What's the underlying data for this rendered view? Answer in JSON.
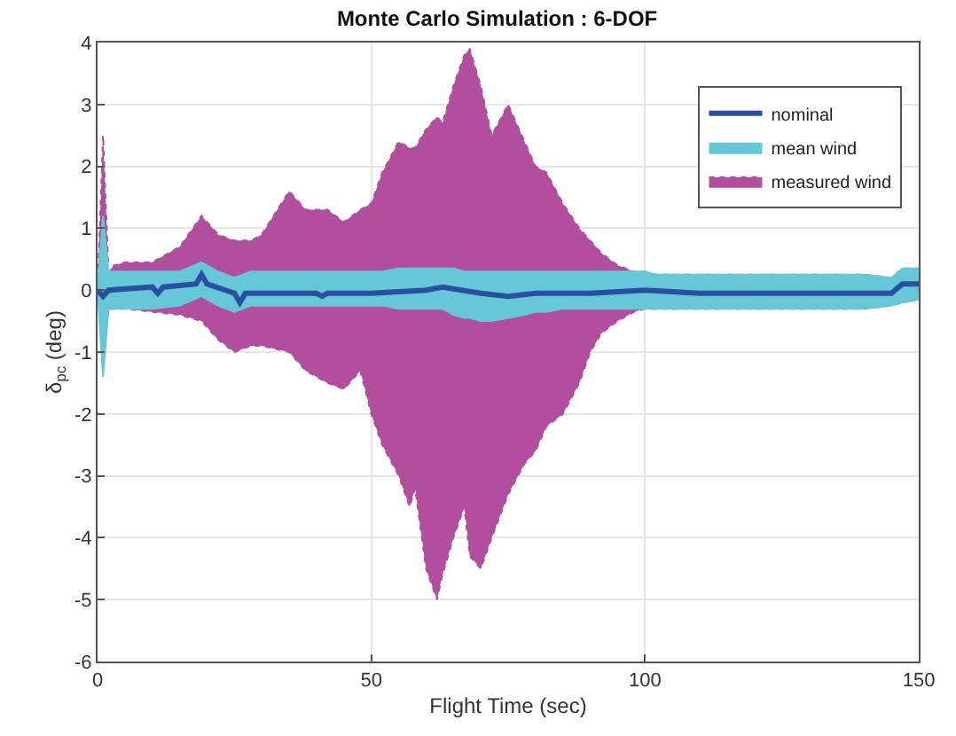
{
  "chart_data": {
    "type": "line",
    "title": "Monte Carlo Simulation : 6-DOF",
    "xlabel": "Flight Time (sec)",
    "ylabel": "δ$_{pc}$ (deg)",
    "xlim": [
      0,
      150
    ],
    "xticks": [
      0,
      50,
      100,
      150
    ],
    "ylim": [
      -6,
      4
    ],
    "yticks": [
      -6,
      -5,
      -4,
      -3,
      -2,
      -1,
      0,
      1,
      2,
      3,
      4
    ],
    "grid": true,
    "legend": "top right",
    "series": [
      {
        "name": "measured wind",
        "color": "#b14e9e",
        "line_style": "dotted",
        "values": [
          null,
          null,
          null,
          null,
          null,
          null,
          null,
          null,
          null,
          null,
          null,
          null,
          null,
          null,
          null,
          null,
          null,
          null,
          null,
          null,
          null,
          null,
          null,
          null,
          null,
          null,
          null,
          null,
          null,
          null,
          null,
          null,
          null,
          null,
          null,
          null,
          null,
          null,
          null,
          null,
          null,
          null,
          null,
          null,
          null,
          null,
          null,
          null,
          null,
          null
        ],
        "x": [
          0,
          1,
          2,
          3,
          5,
          10,
          15,
          19,
          22,
          25,
          28,
          30,
          35,
          38,
          40,
          42,
          45,
          48,
          50,
          52,
          55,
          57,
          58,
          60,
          62,
          63,
          65,
          67,
          68,
          70,
          72,
          75,
          78,
          80,
          82,
          85,
          88,
          90,
          92,
          95,
          98,
          100,
          102,
          110,
          120,
          130,
          140,
          145,
          147,
          150
        ],
        "upper": [
          0,
          2.5,
          0.3,
          0.4,
          0.45,
          0.45,
          0.7,
          1.2,
          0.9,
          0.8,
          0.8,
          0.9,
          1.6,
          1.3,
          1.3,
          1.3,
          1.1,
          1.3,
          1.4,
          1.9,
          2.4,
          2.3,
          2.3,
          2.6,
          2.8,
          2.7,
          3.3,
          3.8,
          3.9,
          3.3,
          2.5,
          3.0,
          2.4,
          2.0,
          1.9,
          1.4,
          1.0,
          0.8,
          0.6,
          0.4,
          0.3,
          0.3,
          0.25,
          0.25,
          0.25,
          0.25,
          0.25,
          0.2,
          0.35,
          0.35
        ],
        "lower": [
          0,
          -1.0,
          -0.3,
          -0.3,
          -0.3,
          -0.35,
          -0.4,
          -0.5,
          -0.8,
          -1.0,
          -0.9,
          -0.9,
          -1.0,
          -1.3,
          -1.4,
          -1.5,
          -1.6,
          -1.3,
          -2.0,
          -2.5,
          -3.0,
          -3.5,
          -3.2,
          -4.5,
          -5.0,
          -4.6,
          -4.0,
          -3.5,
          -4.3,
          -4.5,
          -4.0,
          -3.3,
          -2.8,
          -2.6,
          -2.2,
          -2.0,
          -1.5,
          -1.0,
          -0.7,
          -0.5,
          -0.35,
          -0.3,
          -0.3,
          -0.3,
          -0.3,
          -0.3,
          -0.3,
          -0.25,
          -0.2,
          -0.15
        ]
      },
      {
        "name": "mean wind",
        "color": "#66c8d6",
        "line_style": "solid",
        "values": [
          null,
          null,
          null,
          null,
          null,
          null,
          null,
          null,
          null,
          null,
          null,
          null,
          null,
          null,
          null,
          null,
          null,
          null,
          null,
          null,
          null,
          null,
          null,
          null,
          null,
          null,
          null,
          null,
          null,
          null,
          null,
          null,
          null,
          null,
          null,
          null,
          null,
          null,
          null,
          null,
          null,
          null,
          null,
          null,
          null,
          null,
          null,
          null,
          null,
          null
        ],
        "x": [
          0,
          1,
          2,
          3,
          5,
          10,
          15,
          19,
          22,
          25,
          28,
          30,
          35,
          38,
          40,
          42,
          45,
          48,
          50,
          52,
          55,
          57,
          58,
          60,
          62,
          63,
          65,
          67,
          68,
          70,
          72,
          75,
          78,
          80,
          82,
          85,
          88,
          90,
          92,
          95,
          98,
          100,
          102,
          110,
          120,
          130,
          140,
          145,
          147,
          150
        ],
        "upper": [
          0,
          1.2,
          0.3,
          0.3,
          0.3,
          0.3,
          0.3,
          0.45,
          0.3,
          0.2,
          0.3,
          0.3,
          0.3,
          0.3,
          0.3,
          0.3,
          0.3,
          0.3,
          0.3,
          0.3,
          0.35,
          0.35,
          0.35,
          0.35,
          0.35,
          0.35,
          0.35,
          0.3,
          0.3,
          0.3,
          0.3,
          0.3,
          0.3,
          0.3,
          0.3,
          0.3,
          0.3,
          0.3,
          0.3,
          0.3,
          0.3,
          0.3,
          0.25,
          0.25,
          0.25,
          0.25,
          0.25,
          0.2,
          0.35,
          0.35
        ],
        "lower": [
          0,
          -1.4,
          -0.3,
          -0.3,
          -0.3,
          -0.3,
          -0.25,
          -0.1,
          -0.25,
          -0.35,
          -0.25,
          -0.25,
          -0.25,
          -0.25,
          -0.25,
          -0.25,
          -0.25,
          -0.25,
          -0.25,
          -0.25,
          -0.3,
          -0.3,
          -0.3,
          -0.3,
          -0.3,
          -0.3,
          -0.4,
          -0.45,
          -0.45,
          -0.5,
          -0.5,
          -0.45,
          -0.4,
          -0.35,
          -0.35,
          -0.3,
          -0.3,
          -0.3,
          -0.3,
          -0.3,
          -0.3,
          -0.3,
          -0.3,
          -0.3,
          -0.3,
          -0.3,
          -0.3,
          -0.25,
          -0.2,
          -0.15
        ]
      },
      {
        "name": "nominal",
        "color": "#2a4fa0",
        "line_style": "solid",
        "x": [
          0,
          1,
          2,
          10,
          11,
          12,
          18,
          19,
          20,
          25,
          26,
          27,
          40,
          41,
          42,
          50,
          60,
          63,
          70,
          75,
          80,
          90,
          100,
          110,
          145,
          147,
          150
        ],
        "values": [
          0,
          -0.1,
          0,
          0.05,
          -0.05,
          0.05,
          0.1,
          0.25,
          0.1,
          -0.05,
          -0.2,
          -0.05,
          -0.05,
          -0.1,
          -0.05,
          -0.05,
          0,
          0.05,
          -0.05,
          -0.1,
          -0.05,
          -0.05,
          0,
          -0.05,
          -0.05,
          0.1,
          0.1
        ]
      }
    ]
  }
}
